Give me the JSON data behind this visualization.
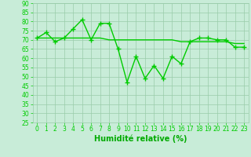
{
  "x": [
    0,
    1,
    2,
    3,
    4,
    5,
    6,
    7,
    8,
    9,
    10,
    11,
    12,
    13,
    14,
    15,
    16,
    17,
    18,
    19,
    20,
    21,
    22,
    23
  ],
  "y_main": [
    71,
    74,
    69,
    71,
    76,
    81,
    70,
    79,
    79,
    65,
    47,
    61,
    49,
    56,
    49,
    61,
    57,
    69,
    71,
    71,
    70,
    70,
    66,
    66
  ],
  "y_smooth": [
    71,
    71,
    71,
    71,
    71,
    71,
    71,
    71,
    70,
    70,
    70,
    70,
    70,
    70,
    70,
    70,
    69,
    69,
    69,
    69,
    69,
    69,
    68,
    68
  ],
  "line_color": "#00cc00",
  "bg_color": "#c8ecd8",
  "grid_color": "#99ccaa",
  "xlabel": "Humidité relative (%)",
  "xlabel_color": "#00aa00",
  "ylim": [
    25,
    90
  ],
  "xlim": [
    -0.5,
    23.5
  ],
  "yticks": [
    25,
    30,
    35,
    40,
    45,
    50,
    55,
    60,
    65,
    70,
    75,
    80,
    85,
    90
  ],
  "xticks": [
    0,
    1,
    2,
    3,
    4,
    5,
    6,
    7,
    8,
    9,
    10,
    11,
    12,
    13,
    14,
    15,
    16,
    17,
    18,
    19,
    20,
    21,
    22,
    23
  ],
  "marker": "+",
  "marker_size": 4,
  "line_width": 1.0,
  "tick_fontsize": 5.5,
  "xlabel_fontsize": 7.0
}
